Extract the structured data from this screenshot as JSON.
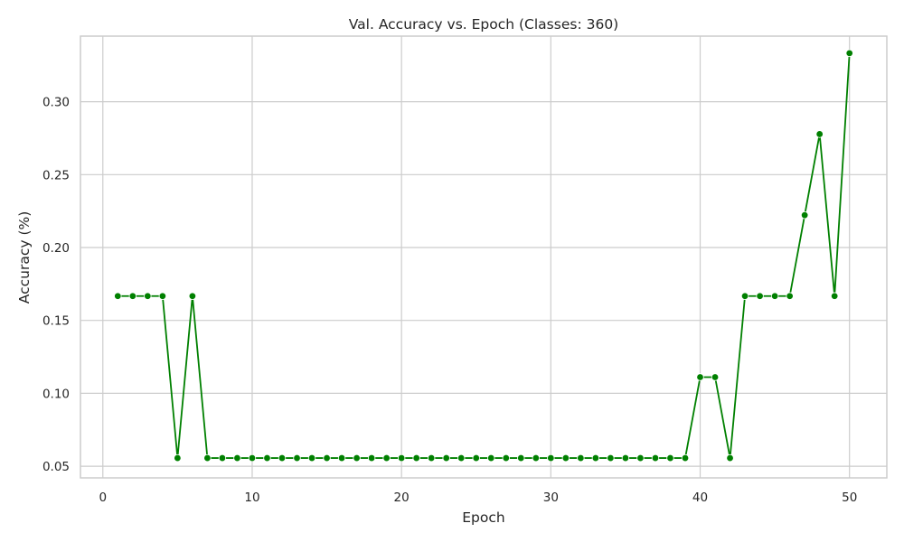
{
  "chart_data": {
    "type": "line",
    "title": "Val. Accuracy vs. Epoch (Classes: 360)",
    "xlabel": "Epoch",
    "ylabel": "Accuracy (%)",
    "xlim": [
      -1.5,
      52.5
    ],
    "ylim": [
      0.042,
      0.345
    ],
    "x_ticks": [
      0,
      10,
      20,
      30,
      40,
      50
    ],
    "y_ticks": [
      0.05,
      0.1,
      0.15,
      0.2,
      0.25,
      0.3
    ],
    "y_tick_labels": [
      "0.05",
      "0.10",
      "0.15",
      "0.20",
      "0.25",
      "0.30"
    ],
    "grid": true,
    "series": [
      {
        "color": "#008000",
        "marker": "circle",
        "x": [
          1,
          2,
          3,
          4,
          5,
          6,
          7,
          8,
          9,
          10,
          11,
          12,
          13,
          14,
          15,
          16,
          17,
          18,
          19,
          20,
          21,
          22,
          23,
          24,
          25,
          26,
          27,
          28,
          29,
          30,
          31,
          32,
          33,
          34,
          35,
          36,
          37,
          38,
          39,
          40,
          41,
          42,
          43,
          44,
          45,
          46,
          47,
          48,
          49,
          50
        ],
        "values": [
          0.1667,
          0.1667,
          0.1667,
          0.1667,
          0.0556,
          0.1667,
          0.0556,
          0.0556,
          0.0556,
          0.0556,
          0.0556,
          0.0556,
          0.0556,
          0.0556,
          0.0556,
          0.0556,
          0.0556,
          0.0556,
          0.0556,
          0.0556,
          0.0556,
          0.0556,
          0.0556,
          0.0556,
          0.0556,
          0.0556,
          0.0556,
          0.0556,
          0.0556,
          0.0556,
          0.0556,
          0.0556,
          0.0556,
          0.0556,
          0.0556,
          0.0556,
          0.0556,
          0.0556,
          0.0556,
          0.1111,
          0.1111,
          0.0556,
          0.1667,
          0.1667,
          0.1667,
          0.1667,
          0.2222,
          0.2778,
          0.1667,
          0.3333
        ]
      }
    ]
  }
}
